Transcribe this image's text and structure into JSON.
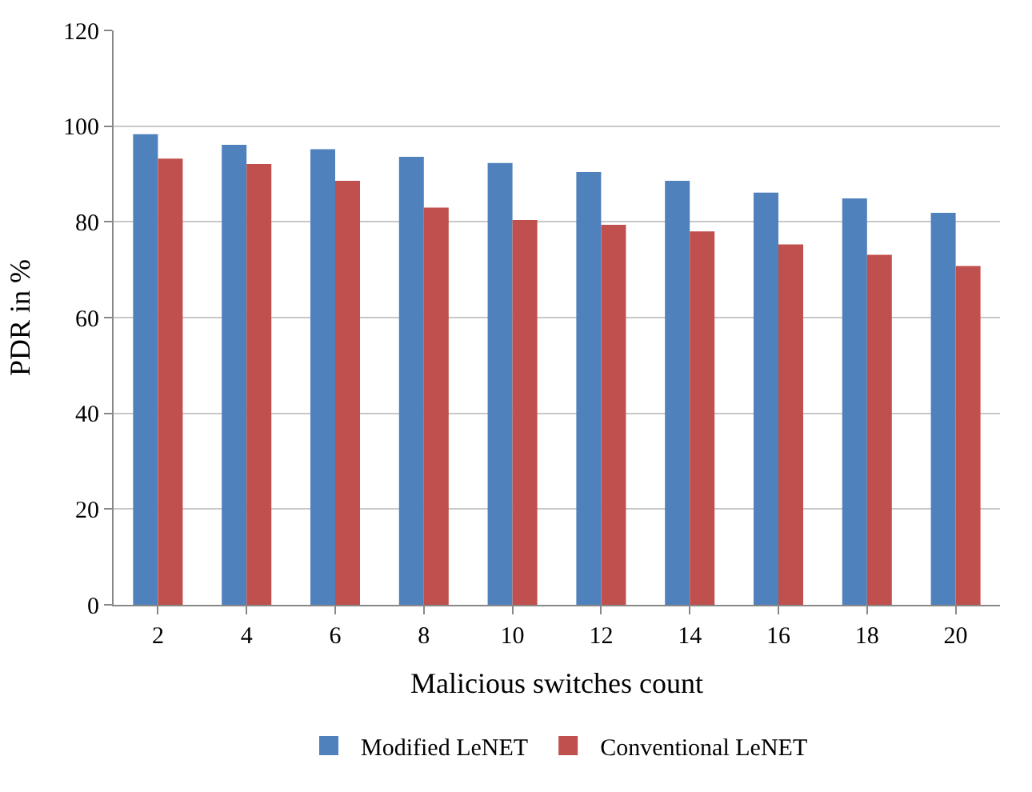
{
  "chart_data": {
    "type": "bar",
    "xlabel": "Malicious switches count",
    "ylabel": "PDR in %",
    "categories": [
      "2",
      "4",
      "6",
      "8",
      "10",
      "12",
      "14",
      "16",
      "18",
      "20"
    ],
    "series": [
      {
        "name": "Modified LeNET",
        "color": "#4f81bd",
        "values": [
          98.3,
          96.1,
          95.2,
          93.6,
          92.3,
          90.4,
          88.6,
          86.1,
          84.9,
          81.9
        ]
      },
      {
        "name": "Conventional LeNET",
        "color": "#c0504d",
        "values": [
          93.2,
          92.1,
          88.6,
          83.0,
          80.4,
          79.4,
          78.0,
          75.3,
          73.1,
          70.8
        ]
      }
    ],
    "ylim": [
      0,
      120
    ],
    "yticks": [
      0,
      20,
      40,
      60,
      80,
      100,
      120
    ],
    "grid": "y",
    "legend": "bottom"
  }
}
